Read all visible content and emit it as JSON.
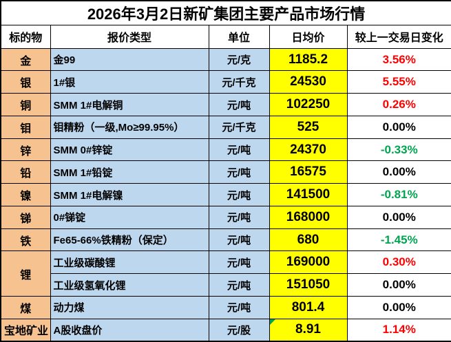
{
  "title": "2026年3月2日新矿集团主要产品市场行情",
  "header": {
    "subject": "标的物",
    "type": "报价类型",
    "unit": "单位",
    "price": "日均价",
    "change": "较上一交易日变化"
  },
  "colors": {
    "change_positive": "#FF0000",
    "change_negative": "#00A551",
    "change_zero": "#000000",
    "subject_bg": "#F6C28F",
    "type_unit_bg": "#BDD7EE",
    "price_bg": "#FFFF00",
    "note_triangle": "#00A551"
  },
  "groups": [
    {
      "subject": "金",
      "items": [
        {
          "type": "金99",
          "unit": "元/克",
          "price": "1185.2",
          "change": "3.56%"
        }
      ]
    },
    {
      "subject": "银",
      "items": [
        {
          "type": "1#银",
          "unit": "元/千克",
          "price": "24530",
          "change": "5.55%"
        }
      ]
    },
    {
      "subject": "铜",
      "items": [
        {
          "type": "SMM 1#电解铜",
          "unit": "元/吨",
          "price": "102250",
          "change": "0.26%"
        }
      ]
    },
    {
      "subject": "钼",
      "items": [
        {
          "type": "钼精粉（一级,Mo≥99.95%）",
          "unit": "元/千克",
          "price": "525",
          "change": "0.00%"
        }
      ]
    },
    {
      "subject": "锌",
      "items": [
        {
          "type": "SMM 0#锌锭",
          "unit": "元/吨",
          "price": "24370",
          "change": "-0.33%"
        }
      ]
    },
    {
      "subject": "铅",
      "items": [
        {
          "type": "SMM 1#铅锭",
          "unit": "元/吨",
          "price": "16575",
          "change": "0.00%"
        }
      ]
    },
    {
      "subject": "镍",
      "items": [
        {
          "type": "SMM 1#电解镍",
          "unit": "元/吨",
          "price": "141500",
          "change": "-0.81%"
        }
      ]
    },
    {
      "subject": "锑",
      "items": [
        {
          "type": "0#锑锭",
          "unit": "元/吨",
          "price": "168000",
          "change": "0.00%"
        }
      ]
    },
    {
      "subject": "铁",
      "items": [
        {
          "type": "Fe65-66%铁精粉（保定）",
          "unit": "元/吨",
          "price": "680",
          "change": "-1.45%"
        }
      ]
    },
    {
      "subject": "锂",
      "items": [
        {
          "type": "工业级碳酸锂",
          "unit": "元/吨",
          "price": "169000",
          "change": "0.30%"
        },
        {
          "type": "工业级氢氧化锂",
          "unit": "元/吨",
          "price": "151050",
          "change": "0.00%"
        }
      ]
    },
    {
      "subject": "煤",
      "items": [
        {
          "type": "动力煤",
          "unit": "元/吨",
          "price": "801.4",
          "change": "0.00%"
        }
      ]
    },
    {
      "subject": "宝地矿业",
      "items": [
        {
          "type": "A股收盘价",
          "unit": "元/股",
          "price": "8.91",
          "change": "1.14%"
        }
      ]
    }
  ]
}
